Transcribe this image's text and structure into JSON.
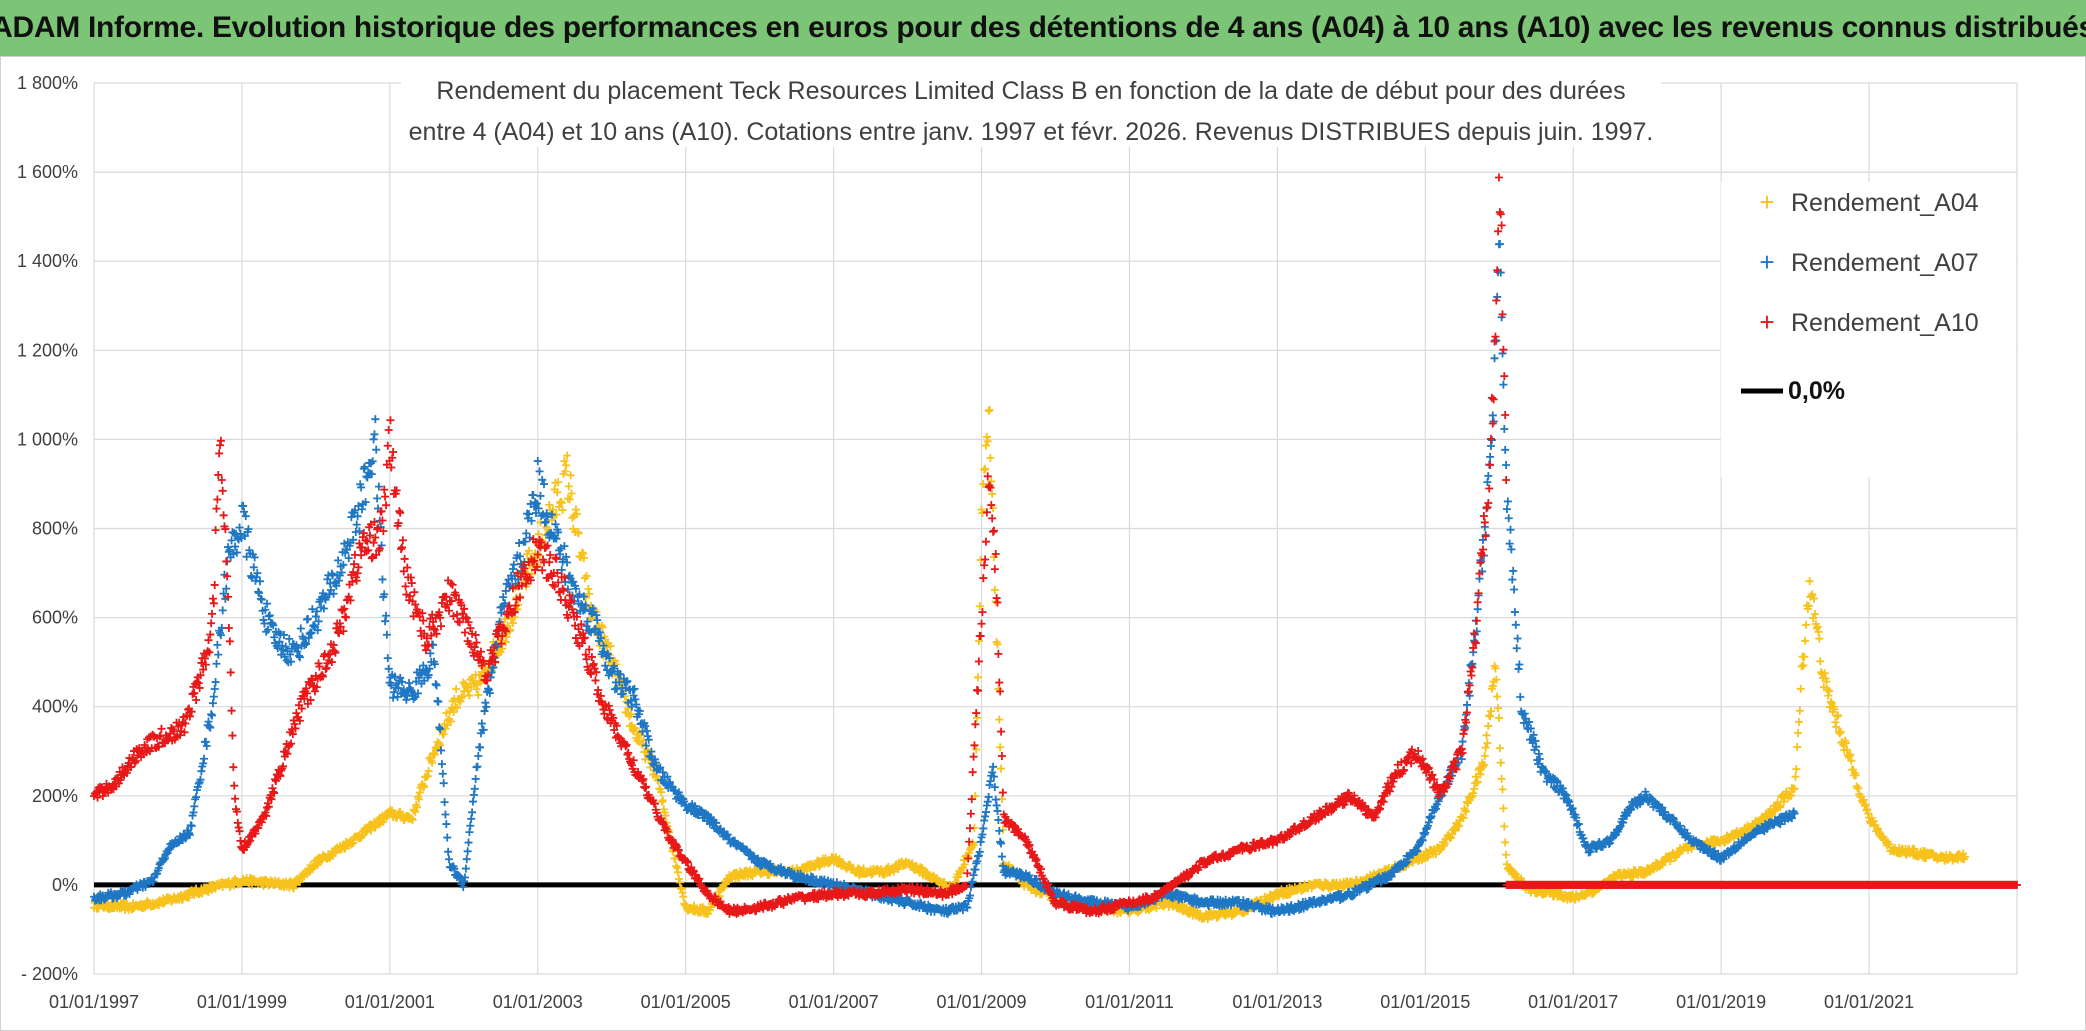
{
  "banner": {
    "text": "ADAM Informe. Evolution historique des performances en euros pour des détentions de 4 ans (A04) à 10 ans (A10) avec les revenus connus distribués"
  },
  "colors": {
    "banner_bg": "#7cc576",
    "A04": "#f7c21c",
    "A07": "#1f77c4",
    "A10": "#e81818",
    "zero_line": "#000000",
    "grid": "#d9d9d9"
  },
  "chart_data": {
    "type": "scatter",
    "title_lines": [
      "Rendement du placement Teck Resources Limited Class B en fonction de la date de début pour des durées",
      "entre 4 (A04) et 10 ans (A10). Cotations entre janv. 1997 et févr. 2026. Revenus DISTRIBUES depuis juin. 1997."
    ],
    "x_range": [
      1997.0,
      2023.0
    ],
    "ylim": [
      -200,
      1800
    ],
    "y_ticks": [
      -200,
      0,
      200,
      400,
      600,
      800,
      1000,
      1200,
      1400,
      1600,
      1800
    ],
    "y_tick_labels": [
      "- 200%",
      "0%",
      "200%",
      "400%",
      "600%",
      "800%",
      "1 000%",
      "1 200%",
      "1 400%",
      "1 600%",
      "1 800%"
    ],
    "x_ticks": [
      1997,
      1999,
      2001,
      2003,
      2005,
      2007,
      2009,
      2011,
      2013,
      2015,
      2017,
      2019,
      2021
    ],
    "x_tick_labels": [
      "01/01/1997",
      "01/01/1999",
      "01/01/2001",
      "01/01/2003",
      "01/01/2005",
      "01/01/2007",
      "01/01/2009",
      "01/01/2011",
      "01/01/2013",
      "01/01/2015",
      "01/01/2017",
      "01/01/2019",
      "01/01/2021"
    ],
    "legend": {
      "position": "top-right",
      "entries": [
        "Rendement_A04",
        "Rendement_A07",
        "Rendement_A10",
        "0,0%"
      ]
    },
    "series": [
      {
        "name": "Rendement_A04",
        "color": "#f7c21c",
        "points": [
          [
            1997.0,
            -45
          ],
          [
            1997.5,
            -50
          ],
          [
            1998.0,
            -35
          ],
          [
            1998.5,
            -10
          ],
          [
            1999.0,
            10
          ],
          [
            1999.3,
            5
          ],
          [
            1999.7,
            0
          ],
          [
            2000.0,
            50
          ],
          [
            2000.5,
            100
          ],
          [
            2001.0,
            160
          ],
          [
            2001.3,
            150
          ],
          [
            2001.6,
            300
          ],
          [
            2001.9,
            420
          ],
          [
            2002.2,
            450
          ],
          [
            2002.5,
            550
          ],
          [
            2002.8,
            680
          ],
          [
            2003.1,
            800
          ],
          [
            2003.4,
            920
          ],
          [
            2003.7,
            620
          ],
          [
            2004.0,
            500
          ],
          [
            2004.3,
            350
          ],
          [
            2004.6,
            250
          ],
          [
            2004.8,
            100
          ],
          [
            2005.0,
            -50
          ],
          [
            2005.3,
            -60
          ],
          [
            2005.6,
            20
          ],
          [
            2006.0,
            30
          ],
          [
            2006.5,
            30
          ],
          [
            2007.0,
            60
          ],
          [
            2007.3,
            30
          ],
          [
            2007.7,
            30
          ],
          [
            2008.0,
            50
          ],
          [
            2008.3,
            20
          ],
          [
            2008.6,
            -10
          ],
          [
            2008.9,
            100
          ],
          [
            2009.0,
            800
          ],
          [
            2009.1,
            1050
          ],
          [
            2009.2,
            600
          ],
          [
            2009.3,
            50
          ],
          [
            2009.6,
            0
          ],
          [
            2010.0,
            -30
          ],
          [
            2010.5,
            -50
          ],
          [
            2011.0,
            -60
          ],
          [
            2011.5,
            -40
          ],
          [
            2012.0,
            -70
          ],
          [
            2012.5,
            -60
          ],
          [
            2013.0,
            -20
          ],
          [
            2013.5,
            0
          ],
          [
            2014.0,
            0
          ],
          [
            2014.5,
            30
          ],
          [
            2014.9,
            60
          ],
          [
            2015.2,
            80
          ],
          [
            2015.5,
            150
          ],
          [
            2015.8,
            280
          ],
          [
            2015.95,
            500
          ],
          [
            2016.1,
            40
          ],
          [
            2016.4,
            -10
          ],
          [
            2016.8,
            -20
          ],
          [
            2017.0,
            -30
          ],
          [
            2017.3,
            -10
          ],
          [
            2017.6,
            20
          ],
          [
            2018.0,
            30
          ],
          [
            2018.5,
            80
          ],
          [
            2019.0,
            100
          ],
          [
            2019.3,
            120
          ],
          [
            2019.6,
            150
          ],
          [
            2020.0,
            220
          ],
          [
            2020.1,
            500
          ],
          [
            2020.2,
            680
          ],
          [
            2020.4,
            450
          ],
          [
            2020.7,
            300
          ],
          [
            2021.0,
            150
          ],
          [
            2021.3,
            80
          ],
          [
            2021.7,
            70
          ],
          [
            2022.0,
            60
          ],
          [
            2022.3,
            65
          ]
        ]
      },
      {
        "name": "Rendement_A07",
        "color": "#1f77c4",
        "points": [
          [
            1997.0,
            -30
          ],
          [
            1997.4,
            -20
          ],
          [
            1997.8,
            10
          ],
          [
            1998.0,
            80
          ],
          [
            1998.3,
            120
          ],
          [
            1998.6,
            400
          ],
          [
            1998.8,
            720
          ],
          [
            1999.0,
            820
          ],
          [
            1999.2,
            680
          ],
          [
            1999.4,
            560
          ],
          [
            1999.7,
            520
          ],
          [
            2000.0,
            600
          ],
          [
            2000.3,
            700
          ],
          [
            2000.6,
            850
          ],
          [
            2000.8,
            1000
          ],
          [
            2000.9,
            700
          ],
          [
            2001.0,
            450
          ],
          [
            2001.3,
            430
          ],
          [
            2001.6,
            520
          ],
          [
            2001.8,
            50
          ],
          [
            2002.0,
            0
          ],
          [
            2002.2,
            300
          ],
          [
            2002.5,
            600
          ],
          [
            2002.8,
            750
          ],
          [
            2003.0,
            900
          ],
          [
            2003.2,
            800
          ],
          [
            2003.5,
            650
          ],
          [
            2003.8,
            580
          ],
          [
            2004.0,
            470
          ],
          [
            2004.3,
            420
          ],
          [
            2004.6,
            260
          ],
          [
            2005.0,
            180
          ],
          [
            2005.3,
            150
          ],
          [
            2005.6,
            100
          ],
          [
            2006.0,
            50
          ],
          [
            2006.5,
            20
          ],
          [
            2007.0,
            0
          ],
          [
            2007.5,
            -20
          ],
          [
            2008.0,
            -40
          ],
          [
            2008.5,
            -60
          ],
          [
            2008.8,
            -50
          ],
          [
            2009.0,
            100
          ],
          [
            2009.15,
            260
          ],
          [
            2009.3,
            30
          ],
          [
            2009.6,
            20
          ],
          [
            2010.0,
            -20
          ],
          [
            2010.5,
            -40
          ],
          [
            2011.0,
            -50
          ],
          [
            2011.5,
            -20
          ],
          [
            2012.0,
            -40
          ],
          [
            2012.5,
            -40
          ],
          [
            2013.0,
            -60
          ],
          [
            2013.5,
            -40
          ],
          [
            2014.0,
            -20
          ],
          [
            2014.5,
            20
          ],
          [
            2014.9,
            80
          ],
          [
            2015.2,
            200
          ],
          [
            2015.5,
            300
          ],
          [
            2015.7,
            600
          ],
          [
            2015.9,
            1000
          ],
          [
            2016.0,
            1400
          ],
          [
            2016.1,
            900
          ],
          [
            2016.3,
            400
          ],
          [
            2016.6,
            250
          ],
          [
            2016.9,
            200
          ],
          [
            2017.2,
            80
          ],
          [
            2017.5,
            100
          ],
          [
            2017.8,
            180
          ],
          [
            2018.0,
            200
          ],
          [
            2018.3,
            150
          ],
          [
            2018.6,
            100
          ],
          [
            2019.0,
            60
          ],
          [
            2019.3,
            100
          ],
          [
            2019.6,
            130
          ],
          [
            2020.0,
            160
          ]
        ]
      },
      {
        "name": "Rendement_A10",
        "color": "#e81818",
        "points": [
          [
            1997.0,
            200
          ],
          [
            1997.3,
            230
          ],
          [
            1997.6,
            300
          ],
          [
            1997.9,
            330
          ],
          [
            1998.2,
            350
          ],
          [
            1998.5,
            500
          ],
          [
            1998.6,
            580
          ],
          [
            1998.7,
            1000
          ],
          [
            1998.8,
            700
          ],
          [
            1998.9,
            200
          ],
          [
            1999.0,
            80
          ],
          [
            1999.3,
            150
          ],
          [
            1999.5,
            250
          ],
          [
            1999.8,
            400
          ],
          [
            2000.0,
            460
          ],
          [
            2000.3,
            560
          ],
          [
            2000.6,
            750
          ],
          [
            2000.9,
            800
          ],
          [
            2001.0,
            1000
          ],
          [
            2001.2,
            700
          ],
          [
            2001.5,
            550
          ],
          [
            2001.8,
            650
          ],
          [
            2002.0,
            600
          ],
          [
            2002.3,
            480
          ],
          [
            2002.6,
            600
          ],
          [
            2002.8,
            700
          ],
          [
            2003.0,
            750
          ],
          [
            2003.3,
            680
          ],
          [
            2003.6,
            550
          ],
          [
            2003.9,
            400
          ],
          [
            2004.2,
            300
          ],
          [
            2004.5,
            200
          ],
          [
            2004.8,
            100
          ],
          [
            2005.0,
            50
          ],
          [
            2005.3,
            -20
          ],
          [
            2005.6,
            -60
          ],
          [
            2006.0,
            -50
          ],
          [
            2006.5,
            -30
          ],
          [
            2007.0,
            -20
          ],
          [
            2007.5,
            -20
          ],
          [
            2008.0,
            -10
          ],
          [
            2008.5,
            -20
          ],
          [
            2008.8,
            0
          ],
          [
            2009.0,
            600
          ],
          [
            2009.1,
            920
          ],
          [
            2009.2,
            700
          ],
          [
            2009.3,
            150
          ],
          [
            2009.6,
            100
          ],
          [
            2010.0,
            -40
          ],
          [
            2010.5,
            -60
          ],
          [
            2011.0,
            -40
          ],
          [
            2011.3,
            -30
          ],
          [
            2011.6,
            0
          ],
          [
            2012.0,
            50
          ],
          [
            2012.5,
            80
          ],
          [
            2013.0,
            100
          ],
          [
            2013.5,
            150
          ],
          [
            2014.0,
            200
          ],
          [
            2014.3,
            150
          ],
          [
            2014.6,
            250
          ],
          [
            2014.9,
            300
          ],
          [
            2015.2,
            200
          ],
          [
            2015.5,
            300
          ],
          [
            2015.7,
            600
          ],
          [
            2015.85,
            900
          ],
          [
            2015.95,
            1200
          ],
          [
            2016.0,
            1650
          ],
          [
            2016.05,
            1300
          ],
          [
            2016.1,
            800
          ]
        ]
      },
      {
        "name": "Rendement_A10_flat",
        "color": "#e81818",
        "x_start": 2016.1,
        "x_end": 2023.0,
        "value": 0
      }
    ]
  }
}
